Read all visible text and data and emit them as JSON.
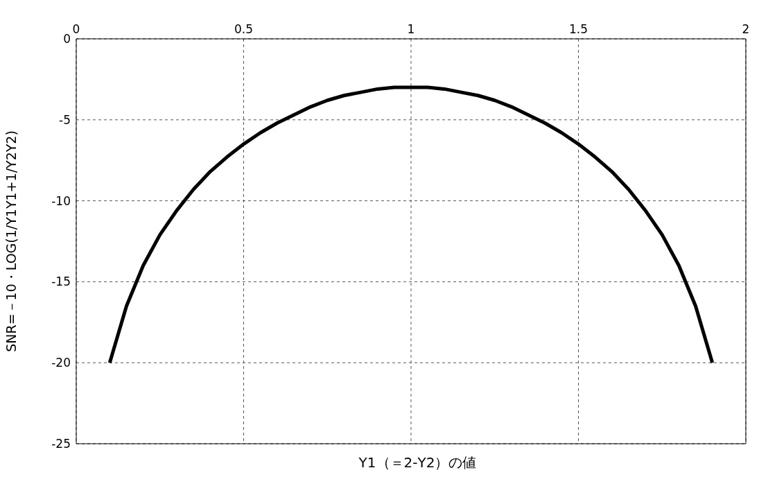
{
  "chart_data": {
    "type": "line",
    "xlabel": "Y1（＝2-Y2）の値",
    "ylabel": "SNR=－10・LOG(1/Y1Y1+1/Y2Y2)",
    "x": [
      0.1,
      0.15,
      0.2,
      0.25,
      0.3,
      0.35,
      0.4,
      0.45,
      0.5,
      0.55,
      0.6,
      0.65,
      0.7,
      0.75,
      0.8,
      0.85,
      0.9,
      0.95,
      1.0,
      1.05,
      1.1,
      1.15,
      1.2,
      1.25,
      1.3,
      1.35,
      1.4,
      1.45,
      1.5,
      1.55,
      1.6,
      1.65,
      1.7,
      1.75,
      1.8,
      1.85,
      1.9
    ],
    "series": [
      {
        "color": "#000000",
        "values": [
          -20.0,
          -16.5,
          -14.0,
          -12.1,
          -10.6,
          -9.3,
          -8.2,
          -7.3,
          -6.5,
          -5.8,
          -5.2,
          -4.7,
          -4.2,
          -3.8,
          -3.5,
          -3.3,
          -3.1,
          -3.0,
          -3.0,
          -3.0,
          -3.1,
          -3.3,
          -3.5,
          -3.8,
          -4.2,
          -4.7,
          -5.2,
          -5.8,
          -6.5,
          -7.3,
          -8.2,
          -9.3,
          -10.6,
          -12.1,
          -14.0,
          -16.5,
          -20.0
        ]
      }
    ],
    "xlim": [
      0,
      2
    ],
    "xticks": [
      0,
      0.5,
      1,
      1.5,
      2
    ],
    "ylim": [
      -25,
      0
    ],
    "yticks": [
      -25,
      -20,
      -15,
      -10,
      -5,
      0
    ],
    "grid": true,
    "line_style": "solid",
    "marker": "none",
    "legend": false
  }
}
